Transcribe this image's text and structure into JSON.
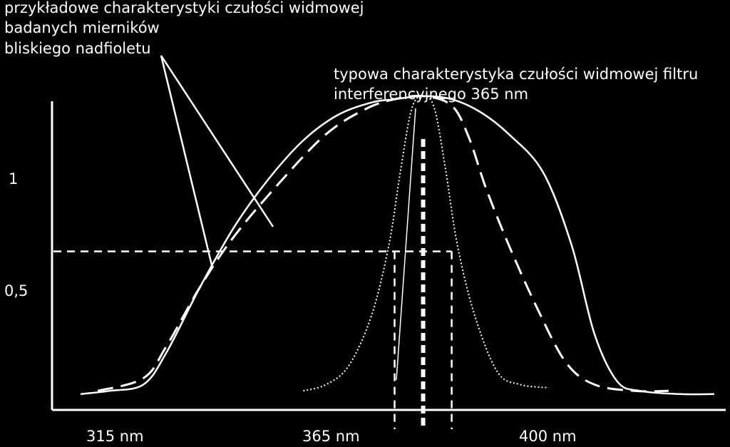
{
  "chart_data": {
    "type": "line",
    "annotations": {
      "meters": "przykładowe charakterystyki czułości widmowej\nbadanych mierników\nbliskiego nadfioletu",
      "filter": "typowa charakterystyka czułości widmowej filtru\ninterferencyjnego 365 nm"
    },
    "x_tick_labels": [
      "315 nm",
      "365 nm",
      "400 nm"
    ],
    "y_tick_labels": [
      "1",
      "0,5"
    ],
    "y_ticks": [
      1,
      0.5
    ],
    "x_ticks": [
      315,
      365,
      400
    ],
    "xlim": [
      300,
      418
    ],
    "ylim": [
      0,
      1.075
    ],
    "half_max_lines": [
      360,
      370
    ],
    "series": [
      {
        "style": "solid",
        "x": [
          305,
          310,
          316,
          320,
          326,
          332,
          338,
          344,
          350,
          356,
          360,
          365,
          370,
          375,
          380,
          386,
          391,
          395,
          399,
          403,
          410,
          416
        ],
        "y": [
          0.05,
          0.06,
          0.08,
          0.18,
          0.39,
          0.58,
          0.73,
          0.85,
          0.93,
          0.97,
          0.98,
          0.99,
          0.98,
          0.94,
          0.87,
          0.75,
          0.52,
          0.24,
          0.09,
          0.06,
          0.05,
          0.05
        ]
      },
      {
        "style": "dashed",
        "x": [
          308,
          316,
          320,
          326,
          332,
          340,
          348,
          355,
          360,
          365,
          370,
          373,
          376,
          380,
          385,
          390,
          395,
          402,
          408
        ],
        "y": [
          0.06,
          0.1,
          0.2,
          0.39,
          0.55,
          0.72,
          0.87,
          0.95,
          0.98,
          0.99,
          0.96,
          0.86,
          0.7,
          0.52,
          0.32,
          0.15,
          0.08,
          0.06,
          0.06
        ]
      },
      {
        "style": "dotted",
        "x": [
          344,
          348,
          352,
          356,
          359,
          361,
          363,
          365,
          367,
          369,
          371,
          374,
          378,
          382,
          387
        ],
        "y": [
          0.06,
          0.08,
          0.14,
          0.3,
          0.52,
          0.75,
          0.95,
          0.99,
          0.95,
          0.75,
          0.52,
          0.3,
          0.12,
          0.08,
          0.07
        ]
      }
    ]
  }
}
